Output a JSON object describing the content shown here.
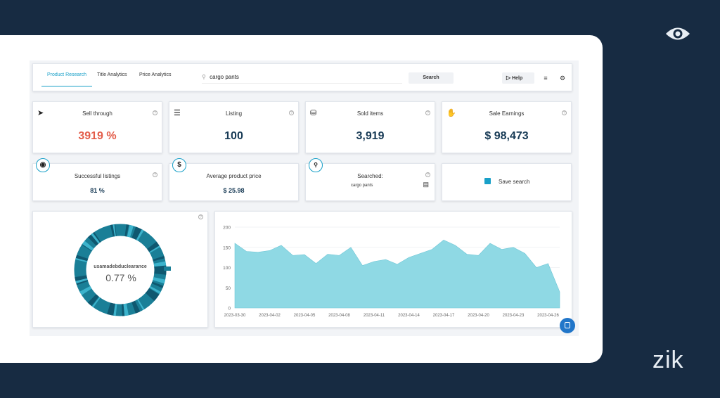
{
  "toolbar": {
    "tabs": [
      "Product Research",
      "Title Analytics",
      "Price Analytics"
    ],
    "search_value": "cargo pants",
    "search_label": "Search",
    "help_label": "Help"
  },
  "stats": [
    {
      "title": "Sell through",
      "value": "3919 %",
      "icon": "rocket-icon"
    },
    {
      "title": "Listing",
      "value": "100",
      "icon": "list-icon"
    },
    {
      "title": "Sold items",
      "value": "3,919",
      "icon": "basket-icon"
    },
    {
      "title": "Sale Earnings",
      "value": "$ 98,473",
      "icon": "hand-dollar-icon"
    }
  ],
  "small_cards": {
    "successful": {
      "title": "Successful listings",
      "value": "81 %"
    },
    "avg_price": {
      "title": "Average product price",
      "value": "$ 25.98"
    },
    "searched": {
      "title": "Searched:",
      "value": "cargo pants"
    },
    "save": {
      "label": "Save search"
    }
  },
  "donut": {
    "label": "usamadebduclearance",
    "value": "0.77 %"
  },
  "chart_data": {
    "type": "area",
    "x": [
      "2023-03-30",
      "2023-03-31",
      "2023-04-01",
      "2023-04-02",
      "2023-04-03",
      "2023-04-04",
      "2023-04-05",
      "2023-04-06",
      "2023-04-07",
      "2023-04-08",
      "2023-04-09",
      "2023-04-10",
      "2023-04-11",
      "2023-04-12",
      "2023-04-13",
      "2023-04-14",
      "2023-04-15",
      "2023-04-16",
      "2023-04-17",
      "2023-04-18",
      "2023-04-19",
      "2023-04-20",
      "2023-04-21",
      "2023-04-22",
      "2023-04-23",
      "2023-04-24",
      "2023-04-25",
      "2023-04-26",
      "2023-04-27"
    ],
    "tick_labels": [
      "2023-03-30",
      "2023-04-02",
      "2023-04-05",
      "2023-04-08",
      "2023-04-11",
      "2023-04-14",
      "2023-04-17",
      "2023-04-20",
      "2023-04-23",
      "2023-04-26"
    ],
    "values": [
      160,
      140,
      138,
      142,
      155,
      130,
      132,
      110,
      133,
      130,
      150,
      105,
      115,
      120,
      108,
      125,
      135,
      145,
      168,
      155,
      133,
      130,
      160,
      145,
      150,
      135,
      100,
      110,
      40
    ],
    "ylim": [
      0,
      200
    ],
    "yticks": [
      0,
      50,
      100,
      150,
      200
    ],
    "color": "#8fd9e4"
  },
  "colors": {
    "accent": "#19a0c8",
    "navy": "#172b42",
    "red": "#e35d4a"
  }
}
